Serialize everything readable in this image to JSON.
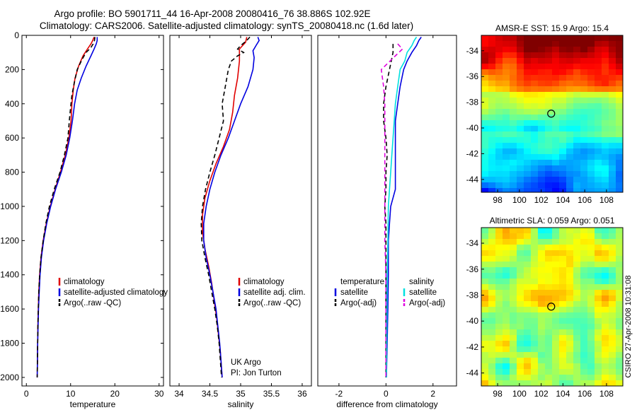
{
  "title": {
    "line1": "Argo profile: BO 5901711_44 16-Apr-2008 20080416_76 38.886S 102.92E",
    "line2": "Climatology: CARS2006. Satellite-adjusted climatology: synTS_20080418.nc (1.6d later)"
  },
  "side_stamp": "CSIRO 27-Apr-2008 10:31:08",
  "colors": {
    "climatology": "#e00000",
    "satellite": "#0000e0",
    "argo": "#000000",
    "temp_satellite": "#0000e0",
    "sal_satellite": "#00e0e0",
    "sal_argo": "#e000e0"
  },
  "chart_data": [
    {
      "type": "line",
      "xlabel": "temperature",
      "ylabel": "",
      "xlim": [
        -1,
        31
      ],
      "ylim": [
        2050,
        0
      ],
      "xticks": [
        0,
        10,
        20,
        30
      ],
      "yticks": [
        0,
        200,
        400,
        600,
        800,
        1000,
        1200,
        1400,
        1600,
        1800,
        2000
      ],
      "legend_position": "lower-right",
      "series": [
        {
          "name": "climatology",
          "color": "#e00000",
          "dash": "",
          "points": [
            [
              15.3,
              10
            ],
            [
              15.0,
              30
            ],
            [
              14.6,
              50
            ],
            [
              13.8,
              80
            ],
            [
              12.8,
              120
            ],
            [
              11.8,
              180
            ],
            [
              11.0,
              250
            ],
            [
              10.6,
              320
            ],
            [
              10.3,
              400
            ],
            [
              10.1,
              500
            ],
            [
              9.6,
              600
            ],
            [
              8.8,
              700
            ],
            [
              7.7,
              800
            ],
            [
              6.5,
              900
            ],
            [
              5.4,
              1000
            ],
            [
              4.5,
              1100
            ],
            [
              3.8,
              1200
            ],
            [
              3.3,
              1300
            ],
            [
              3.0,
              1400
            ],
            [
              2.8,
              1500
            ],
            [
              2.7,
              1600
            ],
            [
              2.6,
              1700
            ],
            [
              2.55,
              1800
            ],
            [
              2.5,
              1900
            ],
            [
              2.45,
              2000
            ]
          ]
        },
        {
          "name": "satellite-adjusted climatology",
          "color": "#0000e0",
          "dash": "",
          "points": [
            [
              16.0,
              10
            ],
            [
              16.0,
              30
            ],
            [
              15.8,
              50
            ],
            [
              15.3,
              80
            ],
            [
              14.6,
              120
            ],
            [
              13.5,
              180
            ],
            [
              12.4,
              250
            ],
            [
              11.5,
              320
            ],
            [
              10.9,
              400
            ],
            [
              10.4,
              500
            ],
            [
              9.8,
              600
            ],
            [
              9.0,
              700
            ],
            [
              7.9,
              800
            ],
            [
              6.6,
              900
            ],
            [
              5.5,
              1000
            ],
            [
              4.6,
              1100
            ],
            [
              3.9,
              1200
            ],
            [
              3.4,
              1300
            ],
            [
              3.1,
              1400
            ],
            [
              2.9,
              1500
            ],
            [
              2.75,
              1600
            ],
            [
              2.65,
              1700
            ],
            [
              2.55,
              1800
            ],
            [
              2.5,
              1900
            ],
            [
              2.45,
              2000
            ]
          ]
        },
        {
          "name": "Argo(..raw -QC)",
          "color": "#000000",
          "dash": "6,4",
          "points": [
            [
              15.5,
              10
            ],
            [
              15.4,
              30
            ],
            [
              15.1,
              50
            ],
            [
              14.5,
              75
            ],
            [
              13.5,
              100
            ],
            [
              12.6,
              140
            ],
            [
              11.5,
              200
            ],
            [
              10.8,
              280
            ],
            [
              10.3,
              350
            ],
            [
              10.0,
              420
            ],
            [
              9.7,
              500
            ],
            [
              9.4,
              600
            ],
            [
              8.6,
              700
            ],
            [
              7.6,
              800
            ],
            [
              6.3,
              900
            ],
            [
              5.2,
              1000
            ],
            [
              4.4,
              1100
            ],
            [
              3.8,
              1200
            ],
            [
              3.3,
              1300
            ],
            [
              3.0,
              1400
            ],
            [
              2.8,
              1500
            ],
            [
              2.7,
              1600
            ],
            [
              2.6,
              1700
            ],
            [
              2.55,
              1800
            ],
            [
              2.5,
              1900
            ],
            [
              2.45,
              2000
            ]
          ]
        }
      ],
      "annotations": []
    },
    {
      "type": "line",
      "xlabel": "salinity",
      "ylabel": "",
      "xlim": [
        33.85,
        36.15
      ],
      "ylim": [
        2050,
        0
      ],
      "xticks": [
        34,
        34.5,
        35,
        35.5,
        36
      ],
      "yticks": [],
      "legend_position": "lower-right",
      "series": [
        {
          "name": "climatology",
          "color": "#e00000",
          "dash": "",
          "points": [
            [
              35.1,
              10
            ],
            [
              35.08,
              40
            ],
            [
              34.98,
              80
            ],
            [
              34.98,
              150
            ],
            [
              34.95,
              250
            ],
            [
              34.9,
              350
            ],
            [
              34.87,
              450
            ],
            [
              34.82,
              550
            ],
            [
              34.72,
              650
            ],
            [
              34.6,
              750
            ],
            [
              34.5,
              850
            ],
            [
              34.42,
              950
            ],
            [
              34.38,
              1050
            ],
            [
              34.38,
              1150
            ],
            [
              34.42,
              1250
            ],
            [
              34.48,
              1350
            ],
            [
              34.53,
              1450
            ],
            [
              34.57,
              1550
            ],
            [
              34.61,
              1650
            ],
            [
              34.64,
              1750
            ],
            [
              34.67,
              1850
            ],
            [
              34.69,
              1950
            ],
            [
              34.7,
              2000
            ]
          ]
        },
        {
          "name": "satellite adj. clim.",
          "color": "#0000e0",
          "dash": "",
          "points": [
            [
              35.28,
              10
            ],
            [
              35.3,
              30
            ],
            [
              35.25,
              60
            ],
            [
              35.2,
              90
            ],
            [
              35.22,
              130
            ],
            [
              35.2,
              200
            ],
            [
              35.12,
              300
            ],
            [
              35.0,
              400
            ],
            [
              34.9,
              500
            ],
            [
              34.8,
              600
            ],
            [
              34.68,
              700
            ],
            [
              34.58,
              800
            ],
            [
              34.5,
              900
            ],
            [
              34.44,
              1000
            ],
            [
              34.4,
              1100
            ],
            [
              34.4,
              1200
            ],
            [
              34.44,
              1300
            ],
            [
              34.5,
              1400
            ],
            [
              34.55,
              1500
            ],
            [
              34.6,
              1600
            ],
            [
              34.63,
              1700
            ],
            [
              34.66,
              1800
            ],
            [
              34.68,
              1900
            ],
            [
              34.7,
              2000
            ]
          ]
        },
        {
          "name": "Argo(..raw -QC)",
          "color": "#000000",
          "dash": "6,4",
          "points": [
            [
              35.15,
              10
            ],
            [
              35.1,
              30
            ],
            [
              35.0,
              60
            ],
            [
              34.95,
              80
            ],
            [
              35.05,
              100
            ],
            [
              34.95,
              120
            ],
            [
              34.85,
              150
            ],
            [
              34.8,
              200
            ],
            [
              34.75,
              300
            ],
            [
              34.7,
              400
            ],
            [
              34.72,
              500
            ],
            [
              34.65,
              600
            ],
            [
              34.58,
              700
            ],
            [
              34.5,
              800
            ],
            [
              34.43,
              900
            ],
            [
              34.38,
              1000
            ],
            [
              34.36,
              1100
            ],
            [
              34.37,
              1200
            ],
            [
              34.42,
              1300
            ],
            [
              34.48,
              1400
            ],
            [
              34.53,
              1500
            ],
            [
              34.58,
              1600
            ],
            [
              34.62,
              1700
            ],
            [
              34.65,
              1800
            ],
            [
              34.67,
              1900
            ],
            [
              34.69,
              2000
            ]
          ]
        }
      ],
      "annotations": [
        "UK Argo",
        "PI: Jon Turton"
      ]
    },
    {
      "type": "line",
      "xlabel": "difference from climatology",
      "ylabel": "",
      "xlim": [
        -2.9,
        3.0
      ],
      "ylim": [
        2050,
        0
      ],
      "xticks": [
        -2,
        0,
        2
      ],
      "yticks": [],
      "legend_position": "lower-center",
      "legend_groups": [
        "temperature",
        "salinity"
      ],
      "series": [
        {
          "name": "satellite",
          "group": "temperature",
          "color": "#0000e0",
          "dash": "",
          "points": [
            [
              1.5,
              10
            ],
            [
              1.4,
              30
            ],
            [
              1.3,
              60
            ],
            [
              1.1,
              100
            ],
            [
              0.9,
              150
            ],
            [
              0.75,
              200
            ],
            [
              0.6,
              300
            ],
            [
              0.5,
              400
            ],
            [
              0.4,
              500
            ],
            [
              0.4,
              600
            ],
            [
              0.4,
              700
            ],
            [
              0.4,
              800
            ],
            [
              0.4,
              900
            ],
            [
              0.3,
              950
            ],
            [
              0.2,
              1000
            ],
            [
              0.15,
              1100
            ],
            [
              0.1,
              1200
            ],
            [
              0.1,
              1400
            ],
            [
              0.08,
              1600
            ],
            [
              0.05,
              1800
            ],
            [
              0.02,
              2000
            ]
          ]
        },
        {
          "name": "Argo(-adj)",
          "group": "temperature",
          "color": "#000000",
          "dash": "6,4",
          "points": [
            [
              0.3,
              50
            ],
            [
              0.3,
              100
            ],
            [
              0.15,
              200
            ],
            [
              0.0,
              300
            ],
            [
              -0.1,
              400
            ],
            [
              -0.1,
              500
            ],
            [
              0.0,
              600
            ],
            [
              0.05,
              700
            ],
            [
              0.0,
              800
            ],
            [
              0.0,
              900
            ],
            [
              -0.05,
              1000
            ],
            [
              0.0,
              1100
            ],
            [
              0.0,
              1200
            ],
            [
              0.0,
              1400
            ],
            [
              0.0,
              1600
            ],
            [
              0.0,
              1800
            ],
            [
              0.0,
              2000
            ]
          ]
        },
        {
          "name": "satellite",
          "group": "salinity",
          "color": "#00e0e0",
          "dash": "",
          "points": [
            [
              1.3,
              10
            ],
            [
              1.2,
              30
            ],
            [
              1.1,
              60
            ],
            [
              0.9,
              100
            ],
            [
              0.8,
              150
            ],
            [
              0.6,
              200
            ],
            [
              0.5,
              300
            ],
            [
              0.4,
              400
            ],
            [
              0.35,
              500
            ],
            [
              0.3,
              600
            ],
            [
              0.25,
              700
            ],
            [
              0.2,
              800
            ],
            [
              0.15,
              900
            ],
            [
              0.1,
              1000
            ],
            [
              0.08,
              1200
            ],
            [
              0.05,
              1400
            ],
            [
              0.04,
              1600
            ],
            [
              0.03,
              1800
            ],
            [
              0.02,
              2000
            ]
          ]
        },
        {
          "name": "Argo(-adj)",
          "group": "salinity",
          "color": "#e000e0",
          "dash": "6,4",
          "points": [
            [
              0.5,
              50
            ],
            [
              0.7,
              80
            ],
            [
              0.4,
              120
            ],
            [
              -0.2,
              200
            ],
            [
              -0.1,
              300
            ],
            [
              -0.05,
              400
            ],
            [
              -0.05,
              500
            ],
            [
              -0.05,
              600
            ],
            [
              -0.05,
              700
            ],
            [
              -0.05,
              800
            ],
            [
              -0.05,
              900
            ],
            [
              -0.05,
              1000
            ],
            [
              -0.05,
              1200
            ],
            [
              0.0,
              1400
            ],
            [
              0.0,
              1600
            ],
            [
              0.0,
              1800
            ],
            [
              0.0,
              2000
            ]
          ]
        }
      ],
      "annotations": []
    },
    {
      "type": "heatmap",
      "title": "AMSR-E SST: 15.9 Argo: 15.4",
      "xlabel": "",
      "ylabel": "",
      "xlim": [
        96.5,
        109.5
      ],
      "ylim": [
        -45,
        -32.8
      ],
      "xticks": [
        98,
        100,
        102,
        104,
        106,
        108
      ],
      "yticks": [
        -34,
        -36,
        -38,
        -40,
        -42,
        -44
      ],
      "marker": {
        "lon": 102.92,
        "lat": -38.886
      },
      "grid": false,
      "legend_position": "none"
    },
    {
      "type": "heatmap",
      "title": "Altimetric SLA: 0.059 Argo: 0.051",
      "xlabel": "",
      "ylabel": "",
      "xlim": [
        96.5,
        109.5
      ],
      "ylim": [
        -45,
        -32.8
      ],
      "xticks": [
        98,
        100,
        102,
        104,
        106,
        108
      ],
      "yticks": [
        -34,
        -36,
        -38,
        -40,
        -42,
        -44
      ],
      "marker": {
        "lon": 102.92,
        "lat": -38.886
      },
      "grid": false,
      "legend_position": "none"
    }
  ]
}
